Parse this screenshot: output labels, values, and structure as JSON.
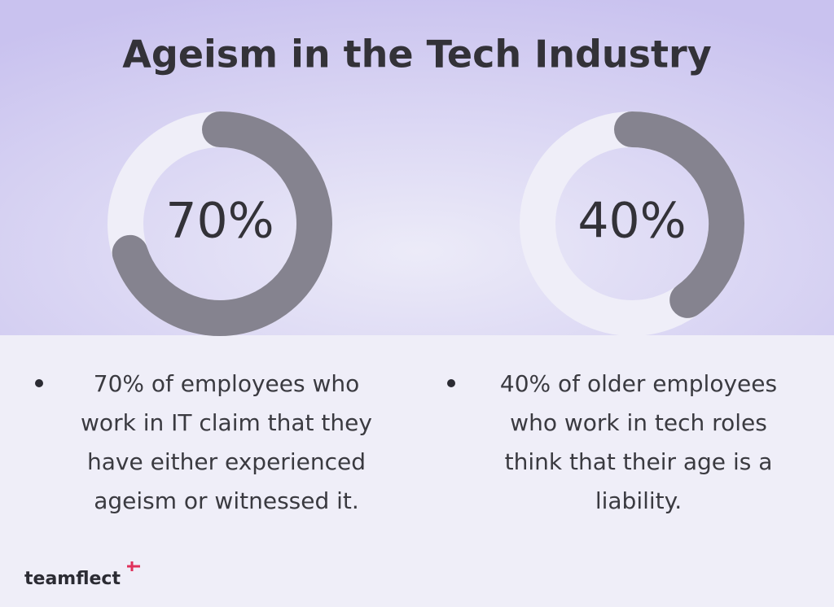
{
  "title": "Ageism in the Tech Industry",
  "chart_data": [
    {
      "type": "donut",
      "values": [
        70
      ],
      "value_labels": [
        "70%"
      ],
      "color": "#85838f",
      "track_color": "#efeef8",
      "caption": "70% of employees who work in IT claim that they have either experienced ageism or witnessed it."
    },
    {
      "type": "donut",
      "values": [
        40
      ],
      "value_labels": [
        "40%"
      ],
      "color": "#85838f",
      "track_color": "#efeef8",
      "caption": "40% of older employees who work in tech roles think that their age is a liability."
    }
  ],
  "logo": "teamflect"
}
